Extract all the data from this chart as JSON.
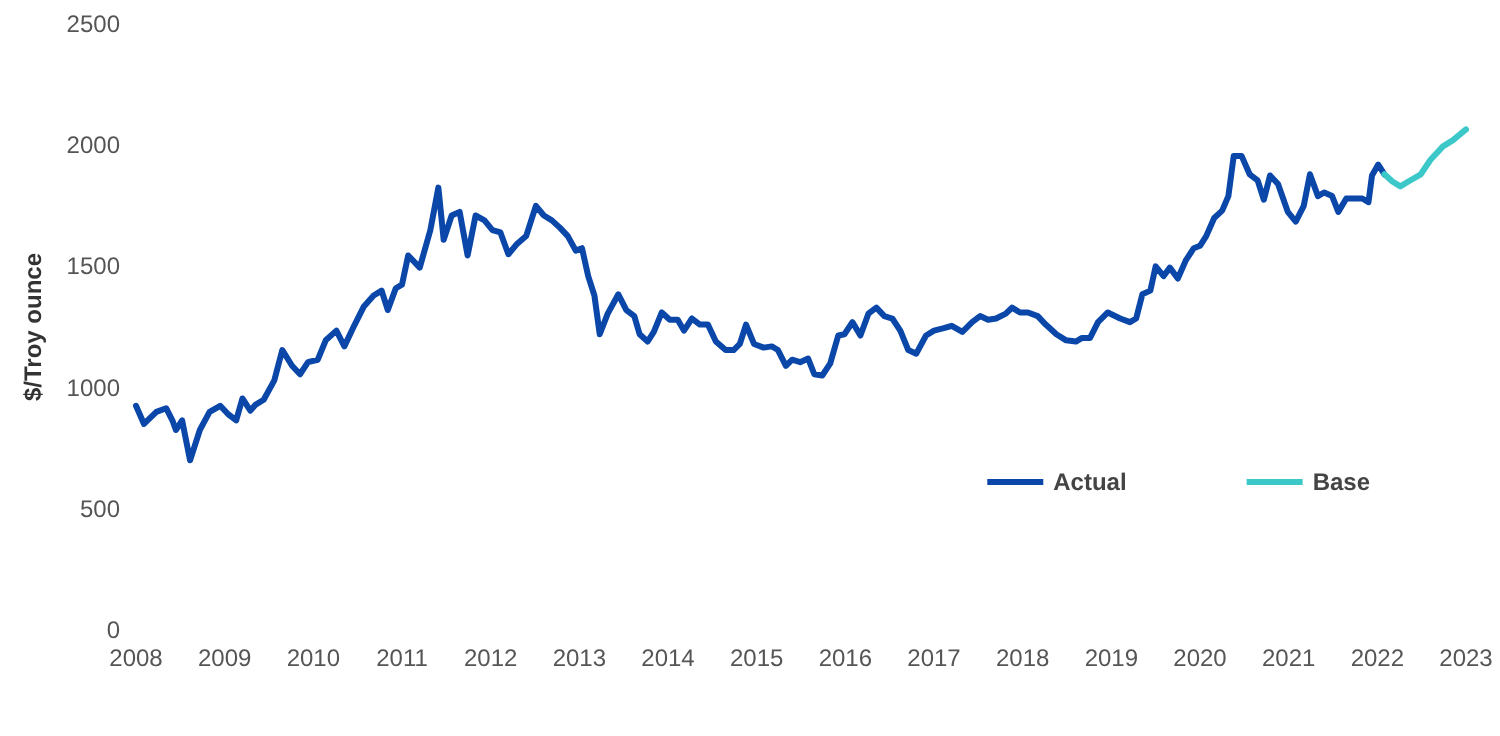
{
  "chart_data": {
    "type": "line",
    "ylabel": "$/Troy ounce",
    "xlim": [
      2008,
      2023
    ],
    "xticks": [
      2008,
      2009,
      2010,
      2011,
      2012,
      2013,
      2014,
      2015,
      2016,
      2017,
      2018,
      2019,
      2020,
      2021,
      2022,
      2023
    ],
    "ylim": [
      0,
      2500
    ],
    "yticks": [
      0,
      500,
      1000,
      1500,
      2000,
      2500
    ],
    "grid": false,
    "legend": "right",
    "marker": "none",
    "line_style": "solid",
    "series": [
      {
        "name": "Actual",
        "color": "#0a47a9",
        "x": [
          2008.0,
          2008.09,
          2008.23,
          2008.34,
          2008.41,
          2008.45,
          2008.52,
          2008.61,
          2008.72,
          2008.83,
          2008.95,
          2009.04,
          2009.13,
          2009.2,
          2009.29,
          2009.35,
          2009.44,
          2009.56,
          2009.65,
          2009.76,
          2009.85,
          2009.94,
          2010.05,
          2010.14,
          2010.26,
          2010.35,
          2010.46,
          2010.57,
          2010.68,
          2010.77,
          2010.84,
          2010.93,
          2011.0,
          2011.07,
          2011.2,
          2011.32,
          2011.41,
          2011.47,
          2011.56,
          2011.65,
          2011.74,
          2011.83,
          2011.93,
          2012.02,
          2012.11,
          2012.2,
          2012.29,
          2012.4,
          2012.51,
          2012.6,
          2012.69,
          2012.78,
          2012.87,
          2012.96,
          2013.03,
          2013.1,
          2013.17,
          2013.23,
          2013.32,
          2013.44,
          2013.53,
          2013.62,
          2013.68,
          2013.77,
          2013.84,
          2013.93,
          2014.02,
          2014.11,
          2014.18,
          2014.27,
          2014.36,
          2014.45,
          2014.54,
          2014.65,
          2014.74,
          2014.81,
          2014.88,
          2014.97,
          2015.08,
          2015.17,
          2015.24,
          2015.33,
          2015.4,
          2015.49,
          2015.58,
          2015.65,
          2015.74,
          2015.83,
          2015.92,
          2015.99,
          2016.08,
          2016.17,
          2016.26,
          2016.35,
          2016.44,
          2016.53,
          2016.62,
          2016.71,
          2016.8,
          2016.91,
          2017.0,
          2017.11,
          2017.2,
          2017.32,
          2017.43,
          2017.52,
          2017.61,
          2017.7,
          2017.81,
          2017.88,
          2017.97,
          2018.06,
          2018.17,
          2018.26,
          2018.38,
          2018.49,
          2018.6,
          2018.67,
          2018.76,
          2018.85,
          2018.96,
          2019.1,
          2019.21,
          2019.28,
          2019.35,
          2019.44,
          2019.5,
          2019.59,
          2019.66,
          2019.75,
          2019.84,
          2019.93,
          2020.0,
          2020.07,
          2020.16,
          2020.25,
          2020.32,
          2020.38,
          2020.47,
          2020.56,
          2020.65,
          2020.72,
          2020.79,
          2020.88,
          2020.99,
          2021.08,
          2021.17,
          2021.24,
          2021.33,
          2021.4,
          2021.49,
          2021.56,
          2021.65,
          2021.74,
          2021.83,
          2021.9,
          2021.94,
          2022.01,
          2022.08
        ],
        "values": [
          925,
          850,
          900,
          915,
          865,
          825,
          865,
          700,
          825,
          900,
          925,
          890,
          865,
          955,
          905,
          930,
          950,
          1030,
          1155,
          1090,
          1055,
          1105,
          1115,
          1195,
          1235,
          1170,
          1255,
          1335,
          1380,
          1400,
          1320,
          1410,
          1425,
          1545,
          1495,
          1650,
          1825,
          1610,
          1710,
          1725,
          1545,
          1710,
          1690,
          1650,
          1640,
          1550,
          1590,
          1625,
          1750,
          1710,
          1690,
          1660,
          1625,
          1565,
          1575,
          1460,
          1380,
          1220,
          1305,
          1385,
          1320,
          1295,
          1220,
          1190,
          1230,
          1310,
          1280,
          1280,
          1235,
          1285,
          1260,
          1260,
          1190,
          1155,
          1155,
          1180,
          1260,
          1180,
          1165,
          1170,
          1155,
          1090,
          1115,
          1105,
          1120,
          1055,
          1050,
          1100,
          1215,
          1220,
          1270,
          1215,
          1305,
          1330,
          1295,
          1285,
          1235,
          1155,
          1140,
          1215,
          1235,
          1245,
          1255,
          1230,
          1270,
          1295,
          1280,
          1285,
          1305,
          1330,
          1310,
          1310,
          1295,
          1260,
          1220,
          1195,
          1190,
          1205,
          1205,
          1270,
          1310,
          1285,
          1270,
          1285,
          1385,
          1400,
          1500,
          1460,
          1495,
          1450,
          1525,
          1575,
          1585,
          1625,
          1700,
          1730,
          1790,
          1955,
          1955,
          1880,
          1855,
          1775,
          1875,
          1840,
          1725,
          1685,
          1750,
          1880,
          1790,
          1805,
          1790,
          1725,
          1780,
          1780,
          1780,
          1765,
          1875,
          1920,
          1880
        ]
      },
      {
        "name": "Base",
        "color": "#3cc8c8",
        "x": [
          2022.08,
          2022.17,
          2022.26,
          2022.35,
          2022.49,
          2022.6,
          2022.74,
          2022.85,
          2023.0
        ],
        "values": [
          1880,
          1850,
          1830,
          1850,
          1880,
          1940,
          1995,
          2020,
          2065
        ]
      }
    ]
  }
}
